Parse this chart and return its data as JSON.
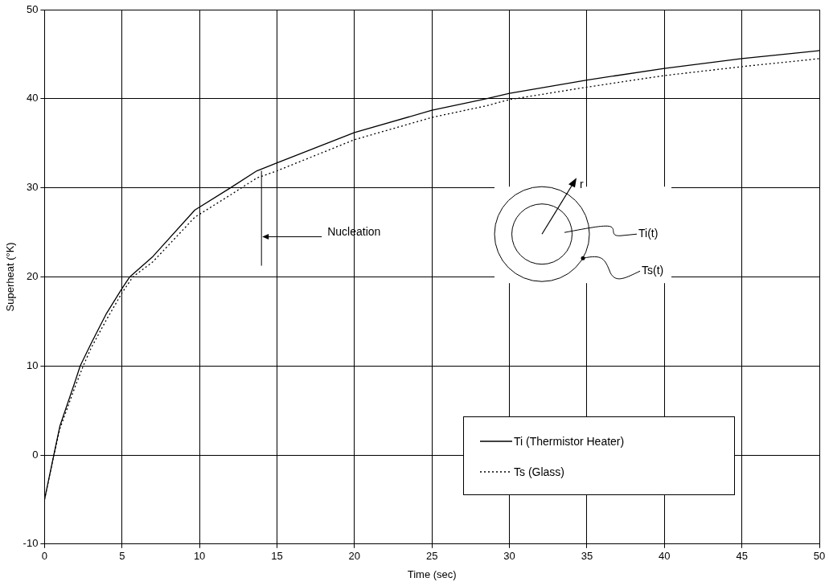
{
  "chart_data": {
    "type": "line",
    "xlabel": "Time (sec)",
    "ylabel": "Superheat (°K)",
    "xlim": [
      0,
      50
    ],
    "xticks": [
      0,
      5,
      10,
      15,
      20,
      25,
      30,
      35,
      40,
      45,
      50
    ],
    "ylim": [
      -10,
      50
    ],
    "yticks": [
      -10,
      0,
      10,
      20,
      30,
      40,
      50
    ],
    "grid": true,
    "legend": "bottom right",
    "marker": "none",
    "annotations": [
      "r",
      "Ti(t)",
      "Ts(t)"
    ],
    "ref_lines": [
      {
        "axis": "x",
        "value": 14,
        "label": "Nucleation",
        "color": "#000000"
      }
    ],
    "series": [
      {
        "name": "Ti (Thermistor Heater)",
        "color": "#000000",
        "line_style": "solid",
        "x": [
          0,
          0.6,
          1,
          2,
          2.3,
          3,
          4,
          5,
          5.5,
          7,
          9.7,
          12,
          13.7,
          15,
          20,
          25,
          28.5,
          30,
          35,
          40,
          45,
          50
        ],
        "values": [
          -5,
          0,
          3.3,
          8.4,
          10,
          12.5,
          15.9,
          18.7,
          20,
          22.3,
          27.5,
          30,
          31.9,
          32.8,
          36.2,
          38.7,
          40,
          40.6,
          42.1,
          43.4,
          44.5,
          45.4
        ]
      },
      {
        "name": "Ts (Glass)",
        "color": "#000000",
        "line_style": "dotted",
        "x": [
          0,
          0.6,
          1,
          2,
          2.5,
          3,
          4,
          5,
          5.7,
          7,
          9.7,
          12,
          13.7,
          15,
          20,
          25,
          28.5,
          30,
          35,
          40,
          45,
          50
        ],
        "values": [
          -5,
          0,
          3,
          7.8,
          10,
          12,
          15.2,
          18.2,
          20,
          21.7,
          26.7,
          29.2,
          31.1,
          31.9,
          35.4,
          37.9,
          39.2,
          39.9,
          41.3,
          42.6,
          43.6,
          44.5
        ]
      }
    ]
  }
}
